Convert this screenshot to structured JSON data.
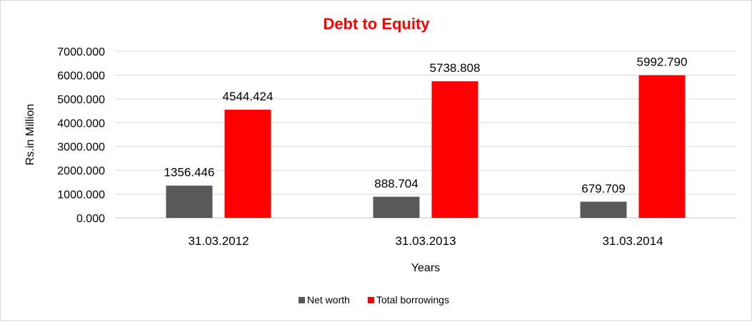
{
  "chart_data": {
    "type": "bar",
    "title": "Debt to Equity",
    "xlabel": "Years",
    "ylabel": "Rs.in Million",
    "categories": [
      "31.03.2012",
      "31.03.2013",
      "31.03.2014"
    ],
    "series": [
      {
        "name": "Net worth",
        "values": [
          1356.446,
          888.704,
          679.709
        ],
        "color": "#595959"
      },
      {
        "name": "Total borrowings",
        "values": [
          4544.424,
          5738.808,
          5992.79
        ],
        "color": "#ff0000"
      }
    ],
    "data_labels": [
      [
        "1356.446",
        "888.704",
        "679.709"
      ],
      [
        "4544.424",
        "5738.808",
        "5992.790"
      ]
    ],
    "ylim": [
      0,
      7000
    ],
    "yticks": [
      "0.000",
      "1000.000",
      "2000.000",
      "3000.000",
      "4000.000",
      "5000.000",
      "6000.000",
      "7000.000"
    ],
    "grid": true,
    "legend_position": "bottom",
    "title_color": "#ff0000"
  }
}
